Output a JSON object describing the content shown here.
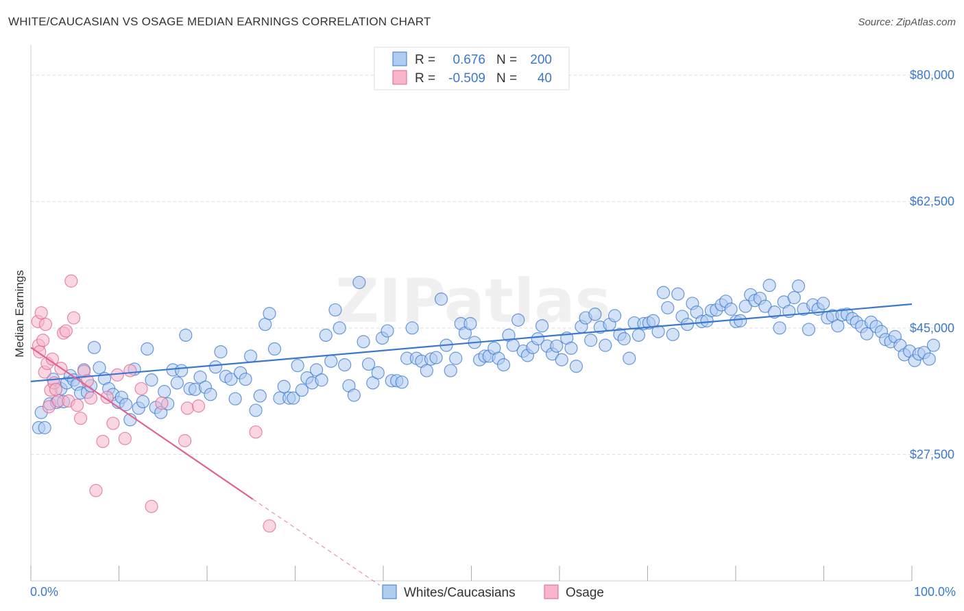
{
  "title": "WHITE/CAUCASIAN VS OSAGE MEDIAN EARNINGS CORRELATION CHART",
  "source": "Source: ZipAtlas.com",
  "watermark": "ZIPatlas",
  "colors": {
    "blue": "#3a78cf",
    "blue_fill": "#aecbf0",
    "pink": "#e0648f",
    "pink_fill": "#f6b5cb",
    "grid": "#d9d9d9",
    "axis": "#999999"
  },
  "legend": {
    "rows": [
      {
        "r_label": "R =",
        "r_value": "0.676",
        "n_label": "N =",
        "n_value": "200",
        "color": "blue"
      },
      {
        "r_label": "R =",
        "r_value": "-0.509",
        "n_label": "N =",
        "n_value": "40",
        "color": "pink"
      }
    ]
  },
  "bottom_legend": [
    {
      "label": "Whites/Caucasians",
      "color": "blue"
    },
    {
      "label": "Osage",
      "color": "pink"
    }
  ],
  "chart_data": {
    "type": "scatter",
    "ylabel": "Median Earnings",
    "xlim": [
      0,
      100
    ],
    "ylim": [
      10000,
      83000
    ],
    "x_tick_labels": [
      {
        "x": 0,
        "label": "0.0%"
      },
      {
        "x": 100,
        "label": "100.0%"
      }
    ],
    "y_ticks": [
      {
        "y": 27500,
        "label": "$27,500"
      },
      {
        "y": 45000,
        "label": "$45,000"
      },
      {
        "y": 62500,
        "label": "$62,500"
      },
      {
        "y": 80000,
        "label": "$80,000"
      }
    ],
    "series": [
      {
        "name": "Whites/Caucasians",
        "color": "blue",
        "trend": {
          "x": [
            0,
            100
          ],
          "y": [
            37600,
            48300
          ],
          "dashed_after": null
        },
        "points": [
          [
            0.3,
            31200
          ],
          [
            0.6,
            33300
          ],
          [
            1.0,
            31200
          ],
          [
            1.6,
            34500
          ],
          [
            2.0,
            37900
          ],
          [
            2.4,
            34700
          ],
          [
            2.9,
            36600
          ],
          [
            3.2,
            34800
          ],
          [
            3.6,
            37400
          ],
          [
            4.0,
            38400
          ],
          [
            4.4,
            37800
          ],
          [
            4.8,
            37200
          ],
          [
            5.2,
            36000
          ],
          [
            5.6,
            39200
          ],
          [
            6.0,
            36100
          ],
          [
            6.4,
            37000
          ],
          [
            6.8,
            42300
          ],
          [
            7.4,
            39500
          ],
          [
            8.0,
            38000
          ],
          [
            8.5,
            36600
          ],
          [
            9.0,
            35800
          ],
          [
            9.6,
            34700
          ],
          [
            10.0,
            35400
          ],
          [
            10.5,
            34400
          ],
          [
            11.0,
            32300
          ],
          [
            11.5,
            39300
          ],
          [
            12.0,
            33900
          ],
          [
            12.5,
            34800
          ],
          [
            13.0,
            42100
          ],
          [
            13.5,
            37800
          ],
          [
            14.0,
            34000
          ],
          [
            14.6,
            33300
          ],
          [
            15.0,
            36200
          ],
          [
            15.4,
            34500
          ],
          [
            16.0,
            39200
          ],
          [
            16.5,
            37400
          ],
          [
            17.0,
            39100
          ],
          [
            17.5,
            44000
          ],
          [
            18.0,
            36600
          ],
          [
            18.6,
            36500
          ],
          [
            19.2,
            38200
          ],
          [
            19.8,
            36800
          ],
          [
            20.4,
            35800
          ],
          [
            21.0,
            39600
          ],
          [
            21.6,
            41700
          ],
          [
            22.2,
            38300
          ],
          [
            22.8,
            37900
          ],
          [
            23.3,
            35200
          ],
          [
            23.9,
            38800
          ],
          [
            24.5,
            37900
          ],
          [
            25.1,
            41100
          ],
          [
            25.7,
            33600
          ],
          [
            26.2,
            35600
          ],
          [
            26.8,
            45500
          ],
          [
            27.3,
            47000
          ],
          [
            27.9,
            42100
          ],
          [
            28.5,
            35300
          ],
          [
            29.0,
            36900
          ],
          [
            29.6,
            35300
          ],
          [
            30.1,
            35300
          ],
          [
            30.6,
            39800
          ],
          [
            31.1,
            36400
          ],
          [
            31.7,
            38100
          ],
          [
            32.3,
            37400
          ],
          [
            32.8,
            39200
          ],
          [
            33.4,
            37800
          ],
          [
            33.9,
            44000
          ],
          [
            34.5,
            40400
          ],
          [
            35.0,
            47500
          ],
          [
            35.5,
            45000
          ],
          [
            36.1,
            39900
          ],
          [
            36.6,
            37000
          ],
          [
            37.2,
            35700
          ],
          [
            37.8,
            51300
          ],
          [
            38.3,
            43100
          ],
          [
            38.9,
            40000
          ],
          [
            39.4,
            37400
          ],
          [
            40.0,
            38800
          ],
          [
            40.5,
            43600
          ],
          [
            41.1,
            44600
          ],
          [
            41.6,
            37700
          ],
          [
            42.2,
            37700
          ],
          [
            42.8,
            37500
          ],
          [
            43.4,
            40800
          ],
          [
            44.0,
            45000
          ],
          [
            44.5,
            40800
          ],
          [
            45.1,
            40400
          ],
          [
            45.7,
            39100
          ],
          [
            46.2,
            40700
          ],
          [
            46.8,
            40900
          ],
          [
            47.4,
            49000
          ],
          [
            48.0,
            42600
          ],
          [
            48.5,
            39100
          ],
          [
            49.1,
            40800
          ],
          [
            49.7,
            45600
          ],
          [
            50.2,
            44300
          ],
          [
            50.8,
            45600
          ],
          [
            51.3,
            43000
          ],
          [
            51.9,
            40600
          ],
          [
            52.5,
            41100
          ],
          [
            53.0,
            41100
          ],
          [
            53.6,
            42200
          ],
          [
            54.1,
            40800
          ],
          [
            54.7,
            39900
          ],
          [
            55.3,
            44000
          ],
          [
            55.8,
            42600
          ],
          [
            56.4,
            46100
          ],
          [
            57.0,
            41800
          ],
          [
            57.5,
            41200
          ],
          [
            58.1,
            42300
          ],
          [
            58.7,
            43500
          ],
          [
            59.2,
            45300
          ],
          [
            59.8,
            42500
          ],
          [
            60.4,
            41400
          ],
          [
            60.9,
            42500
          ],
          [
            61.5,
            40600
          ],
          [
            62.1,
            43600
          ],
          [
            62.6,
            42200
          ],
          [
            63.2,
            39700
          ],
          [
            63.8,
            45200
          ],
          [
            64.3,
            46400
          ],
          [
            64.9,
            43300
          ],
          [
            65.4,
            46900
          ],
          [
            66.0,
            45100
          ],
          [
            66.6,
            42600
          ],
          [
            67.1,
            45500
          ],
          [
            67.7,
            46700
          ],
          [
            68.3,
            44100
          ],
          [
            68.8,
            43500
          ],
          [
            69.4,
            40800
          ],
          [
            70.0,
            45700
          ],
          [
            70.5,
            44000
          ],
          [
            71.1,
            45600
          ],
          [
            71.7,
            45700
          ],
          [
            72.2,
            46000
          ],
          [
            72.8,
            44500
          ],
          [
            73.4,
            49900
          ],
          [
            73.9,
            47800
          ],
          [
            74.5,
            44100
          ],
          [
            75.1,
            49700
          ],
          [
            75.6,
            46600
          ],
          [
            76.2,
            45500
          ],
          [
            76.8,
            48400
          ],
          [
            77.3,
            47200
          ],
          [
            77.9,
            45900
          ],
          [
            78.5,
            46000
          ],
          [
            79.0,
            47400
          ],
          [
            79.6,
            47500
          ],
          [
            80.2,
            48200
          ],
          [
            80.7,
            48700
          ],
          [
            81.3,
            47600
          ],
          [
            81.9,
            45900
          ],
          [
            82.4,
            46000
          ],
          [
            83.0,
            48000
          ],
          [
            83.6,
            49600
          ],
          [
            84.1,
            48800
          ],
          [
            84.7,
            49100
          ],
          [
            85.3,
            48000
          ],
          [
            85.8,
            50900
          ],
          [
            86.4,
            47200
          ],
          [
            87.0,
            45000
          ],
          [
            87.5,
            48600
          ],
          [
            88.1,
            47300
          ],
          [
            88.7,
            49200
          ],
          [
            89.2,
            50800
          ],
          [
            89.8,
            47600
          ],
          [
            90.4,
            44800
          ],
          [
            90.9,
            48200
          ],
          [
            91.5,
            47600
          ],
          [
            92.1,
            48400
          ],
          [
            92.6,
            46400
          ],
          [
            93.2,
            46700
          ],
          [
            93.8,
            45300
          ],
          [
            94.3,
            46800
          ],
          [
            94.9,
            46900
          ],
          [
            95.5,
            46300
          ],
          [
            96.0,
            45800
          ],
          [
            96.6,
            45200
          ],
          [
            97.2,
            44200
          ],
          [
            97.7,
            45800
          ],
          [
            98.3,
            45200
          ],
          [
            98.9,
            44500
          ],
          [
            99.4,
            43400
          ],
          [
            100.0,
            43100
          ],
          [
            100.5,
            43800
          ],
          [
            101.1,
            42600
          ],
          [
            101.6,
            41300
          ],
          [
            102.2,
            41800
          ],
          [
            102.8,
            40500
          ],
          [
            103.3,
            41400
          ],
          [
            103.9,
            41600
          ],
          [
            104.5,
            40700
          ],
          [
            105.0,
            42600
          ]
        ]
      },
      {
        "name": "Osage",
        "color": "pink",
        "trend": {
          "x": [
            0,
            25.2
          ],
          "y": [
            42300,
            21300
          ],
          "dashed_to": {
            "x": 39.6,
            "y": 9400
          }
        },
        "points": [
          [
            0.2,
            45900
          ],
          [
            0.3,
            42600
          ],
          [
            0.4,
            41700
          ],
          [
            0.6,
            47100
          ],
          [
            0.8,
            43300
          ],
          [
            1.0,
            38900
          ],
          [
            1.1,
            45500
          ],
          [
            1.3,
            40100
          ],
          [
            1.5,
            34100
          ],
          [
            1.7,
            36400
          ],
          [
            1.9,
            40700
          ],
          [
            2.1,
            37400
          ],
          [
            2.3,
            36500
          ],
          [
            2.6,
            34900
          ],
          [
            2.9,
            39400
          ],
          [
            3.2,
            44300
          ],
          [
            3.5,
            44600
          ],
          [
            3.8,
            34900
          ],
          [
            4.1,
            51500
          ],
          [
            4.4,
            46400
          ],
          [
            4.8,
            34300
          ],
          [
            5.2,
            32500
          ],
          [
            5.6,
            39000
          ],
          [
            6.0,
            37700
          ],
          [
            6.4,
            35300
          ],
          [
            7.0,
            22500
          ],
          [
            7.8,
            29300
          ],
          [
            8.3,
            35400
          ],
          [
            9.0,
            31800
          ],
          [
            9.5,
            38500
          ],
          [
            10.4,
            29700
          ],
          [
            11.0,
            39100
          ],
          [
            12.3,
            36600
          ],
          [
            13.5,
            20300
          ],
          [
            14.7,
            34600
          ],
          [
            17.4,
            29400
          ],
          [
            17.7,
            33900
          ],
          [
            19.0,
            34200
          ],
          [
            25.7,
            30600
          ],
          [
            27.3,
            17600
          ]
        ]
      }
    ]
  }
}
